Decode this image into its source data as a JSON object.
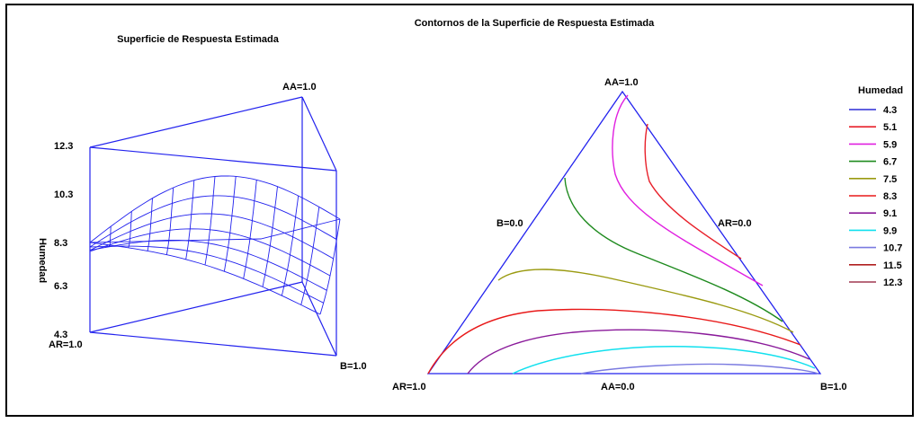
{
  "chart_data": [
    {
      "type": "surface",
      "title": "Superficie de Respuesta Estimada",
      "zlabel": "Humedad",
      "z_ticks": [
        "12.3",
        "10.3",
        "8.3",
        "6.3",
        "4.3"
      ],
      "zlim": [
        4.3,
        12.3
      ],
      "vertex_labels": {
        "aa": "AA=1.0",
        "ar": "AR=1.0",
        "b": "B=1.0"
      },
      "colors": {
        "frame": "#2222ee",
        "mesh": "#2222ee"
      }
    },
    {
      "type": "contour",
      "title": "Contornos de la Superficie de Respuesta Estimada",
      "legend_title": "Humedad",
      "legend_position": "right",
      "vertex_labels": {
        "top": "AA=1.0",
        "left": "AR=1.0",
        "right": "B=1.0"
      },
      "edge_labels": {
        "left": "B=0.0",
        "right": "AR=0.0",
        "bottom": "AA=0.0"
      },
      "levels": [
        {
          "value": "4.3",
          "color": "#2b2bd6"
        },
        {
          "value": "5.1",
          "color": "#e8202a"
        },
        {
          "value": "5.9",
          "color": "#e020e0"
        },
        {
          "value": "6.7",
          "color": "#1e8a1e"
        },
        {
          "value": "7.5",
          "color": "#9a9a10"
        },
        {
          "value": "8.3",
          "color": "#e81818"
        },
        {
          "value": "9.1",
          "color": "#8a1a9a"
        },
        {
          "value": "9.9",
          "color": "#10e0ee"
        },
        {
          "value": "10.7",
          "color": "#7a7ae0"
        },
        {
          "value": "11.5",
          "color": "#b02020"
        },
        {
          "value": "12.3",
          "color": "#a03850"
        }
      ]
    }
  ]
}
